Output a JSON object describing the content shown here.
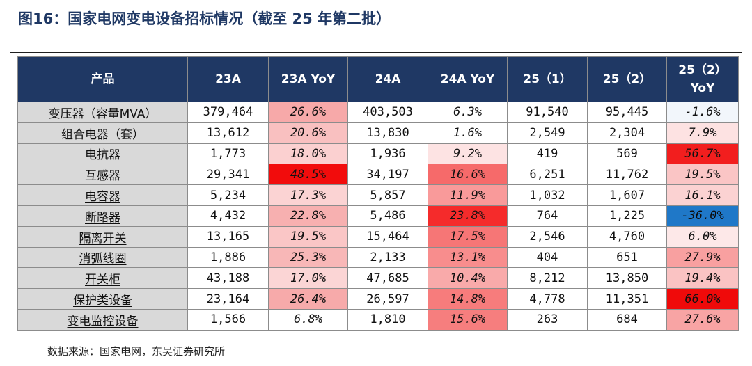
{
  "title": "图16：国家电网变电设备招标情况（截至 25 年第二批）",
  "table": {
    "headers": [
      "产品",
      "23A",
      "23A YoY",
      "24A",
      "24A YoY",
      "25（1）",
      "25（2）",
      "25（2）\nYoY"
    ],
    "rows": [
      [
        "变压器（容量MVA）",
        "379,464",
        "26.6%",
        "403,503",
        "6.3%",
        "91,540",
        "95,445",
        "-1.6%"
      ],
      [
        "组合电器（套）",
        "13,612",
        "20.6%",
        "13,830",
        "1.6%",
        "2,549",
        "2,304",
        "7.9%"
      ],
      [
        "电抗器",
        "1,773",
        "18.0%",
        "1,936",
        "9.2%",
        "419",
        "569",
        "56.7%"
      ],
      [
        "互感器",
        "29,341",
        "48.5%",
        "34,197",
        "16.6%",
        "6,251",
        "11,762",
        "19.5%"
      ],
      [
        "电容器",
        "5,234",
        "17.3%",
        "5,857",
        "11.9%",
        "1,032",
        "1,607",
        "16.1%"
      ],
      [
        "断路器",
        "4,432",
        "22.8%",
        "5,486",
        "23.8%",
        "764",
        "1,225",
        "-36.0%"
      ],
      [
        "隔离开关",
        "13,165",
        "19.5%",
        "15,464",
        "17.5%",
        "2,546",
        "4,760",
        "6.0%"
      ],
      [
        "消弧线圈",
        "1,886",
        "25.3%",
        "2,133",
        "13.1%",
        "404",
        "651",
        "27.9%"
      ],
      [
        "开关柜",
        "43,188",
        "17.0%",
        "47,685",
        "10.4%",
        "8,212",
        "13,850",
        "19.4%"
      ],
      [
        "保护类设备",
        "23,164",
        "26.4%",
        "26,597",
        "14.8%",
        "4,778",
        "11,351",
        "66.0%"
      ],
      [
        "变电监控设备",
        "1,566",
        "6.8%",
        "1,810",
        "15.6%",
        "263",
        "684",
        "27.6%"
      ]
    ],
    "cell_colors": {
      "23A YoY": [
        "#f7a9a9",
        "#f9c0c0",
        "#fbd0d0",
        "#f20c0c",
        "#fbd3d3",
        "#f7b0b0",
        "#fac6c6",
        "#f8b7b7",
        "#fbd5d5",
        "#f7aaaa",
        "#ffffff"
      ],
      "24A YoY": [
        "#ffffff",
        "#ffffff",
        "#fde3e3",
        "#f66a6a",
        "#f99a9a",
        "#f52b2b",
        "#f67676",
        "#f88d8d",
        "#f9aaaa",
        "#f77c7c",
        "#f67e7e"
      ],
      "25（2）YoY": [
        "#f2f6fb",
        "#fde2e2",
        "#f21e1e",
        "#fac5c5",
        "#fbd2d2",
        "#1f78c8",
        "#fde8e8",
        "#f8a0a0",
        "#fac3c3",
        "#f00a0a",
        "#f8a4a4"
      ]
    }
  },
  "source": "数据来源：国家电网，东吴证券研究所"
}
